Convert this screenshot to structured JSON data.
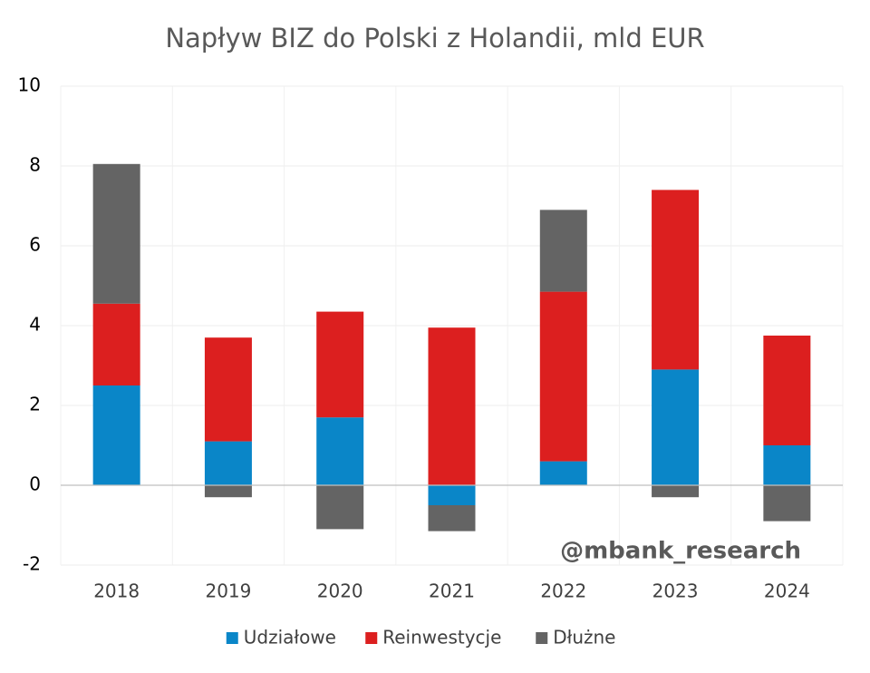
{
  "chart_data": {
    "type": "stacked_bar",
    "title": "Napływ BIZ do Polski z Holandii, mld EUR",
    "categories": [
      "2018",
      "2019",
      "2020",
      "2021",
      "2022",
      "2023",
      "2024"
    ],
    "series": [
      {
        "name": "Udziałowe",
        "color": "#0a86c8",
        "values": [
          2.5,
          1.1,
          1.7,
          -0.5,
          0.6,
          2.9,
          1.0
        ]
      },
      {
        "name": "Reinwestycje",
        "color": "#dc1f1f",
        "values": [
          2.05,
          2.6,
          2.65,
          3.95,
          4.25,
          4.5,
          2.75
        ]
      },
      {
        "name": "Dłużne",
        "color": "#646464",
        "values": [
          3.5,
          -0.3,
          -1.1,
          -0.65,
          2.05,
          -0.3,
          -0.9
        ]
      }
    ],
    "ylim": [
      -2,
      10
    ],
    "yticks": [
      -2,
      0,
      2,
      4,
      6,
      8,
      10
    ],
    "grid": true,
    "watermark": "@mbank_research",
    "legend": "bottom"
  }
}
